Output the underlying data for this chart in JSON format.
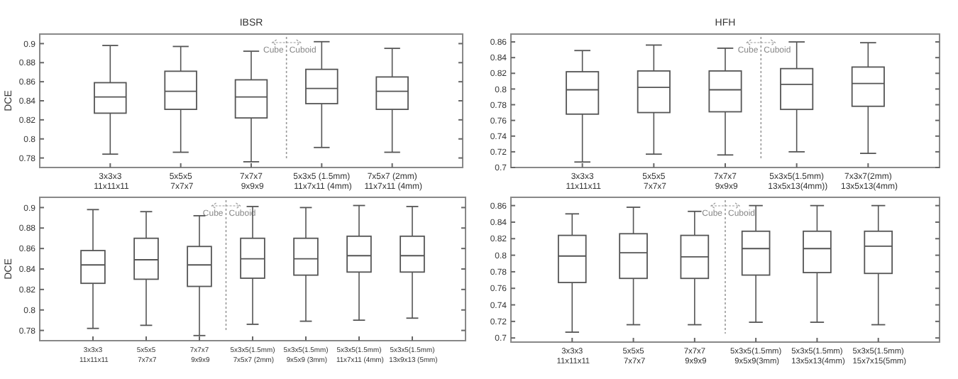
{
  "chart_data": [
    {
      "type": "box",
      "title": "IBSR",
      "ylabel": "DCE",
      "categories": [
        "3x3x3\n11x11x11",
        "5x5x5\n7x7x7",
        "7x7x7\n9x9x9",
        "5x3x5 (1.5mm)\n11x7x11 (4mm)",
        "7x5x7 (2mm)\n11x7x11 (4mm)"
      ],
      "ylim": [
        0.77,
        0.91
      ],
      "yticks": [
        0.78,
        0.8,
        0.82,
        0.84,
        0.86,
        0.88,
        0.9
      ],
      "color": "#555555",
      "annotations": [
        "Cube",
        "Cuboid"
      ],
      "boxes": [
        {
          "low": 0.784,
          "q1": 0.827,
          "median": 0.844,
          "q3": 0.859,
          "high": 0.898
        },
        {
          "low": 0.786,
          "q1": 0.831,
          "median": 0.85,
          "q3": 0.871,
          "high": 0.897
        },
        {
          "low": 0.776,
          "q1": 0.822,
          "median": 0.844,
          "q3": 0.862,
          "high": 0.892
        },
        {
          "low": 0.791,
          "q1": 0.837,
          "median": 0.853,
          "q3": 0.873,
          "high": 0.902
        },
        {
          "low": 0.786,
          "q1": 0.831,
          "median": 0.85,
          "q3": 0.865,
          "high": 0.895
        }
      ]
    },
    {
      "type": "box",
      "title": "HFH",
      "categories": [
        "3x3x3\n11x11x11",
        "5x5x5\n7x7x7",
        "7x7x7\n9x9x9",
        "5x3x5(1.5mm)\n13x5x13(4mm))",
        "7x3x7(2mm)\n13x5x13(4mm)"
      ],
      "ylim": [
        0.7,
        0.87
      ],
      "yticks": [
        0.7,
        0.72,
        0.74,
        0.76,
        0.78,
        0.8,
        0.82,
        0.84,
        0.86
      ],
      "color": "#555555",
      "annotations": [
        "Cube",
        "Cuboid"
      ],
      "boxes": [
        {
          "low": 0.707,
          "q1": 0.768,
          "median": 0.799,
          "q3": 0.822,
          "high": 0.849
        },
        {
          "low": 0.717,
          "q1": 0.77,
          "median": 0.802,
          "q3": 0.823,
          "high": 0.856
        },
        {
          "low": 0.716,
          "q1": 0.771,
          "median": 0.799,
          "q3": 0.823,
          "high": 0.852
        },
        {
          "low": 0.72,
          "q1": 0.774,
          "median": 0.806,
          "q3": 0.826,
          "high": 0.86
        },
        {
          "low": 0.718,
          "q1": 0.778,
          "median": 0.807,
          "q3": 0.828,
          "high": 0.859
        }
      ]
    },
    {
      "type": "box",
      "ylabel": "DCE",
      "categories": [
        "3x3x3\n11x11x11",
        "5x5x5\n7x7x7",
        "7x7x7\n9x9x9",
        "5x3x5(1.5mm)\n7x5x7 (2mm)",
        "5x3x5(1.5mm)\n9x5x9 (3mm)",
        "5x3x5(1.5mm)\n11x7x11 (4mm)",
        "5x3x5(1.5mm)\n13x9x13 (5mm)"
      ],
      "ylim": [
        0.77,
        0.91
      ],
      "yticks": [
        0.78,
        0.8,
        0.82,
        0.84,
        0.86,
        0.88,
        0.9
      ],
      "color": "#555555",
      "annotations": [
        "Cube",
        "Cuboid"
      ],
      "boxes": [
        {
          "low": 0.782,
          "q1": 0.826,
          "median": 0.844,
          "q3": 0.858,
          "high": 0.898
        },
        {
          "low": 0.785,
          "q1": 0.83,
          "median": 0.849,
          "q3": 0.87,
          "high": 0.896
        },
        {
          "low": 0.775,
          "q1": 0.823,
          "median": 0.844,
          "q3": 0.862,
          "high": 0.892
        },
        {
          "low": 0.786,
          "q1": 0.831,
          "median": 0.85,
          "q3": 0.87,
          "high": 0.901
        },
        {
          "low": 0.789,
          "q1": 0.834,
          "median": 0.85,
          "q3": 0.87,
          "high": 0.9
        },
        {
          "low": 0.79,
          "q1": 0.837,
          "median": 0.853,
          "q3": 0.872,
          "high": 0.902
        },
        {
          "low": 0.792,
          "q1": 0.837,
          "median": 0.853,
          "q3": 0.872,
          "high": 0.901
        }
      ]
    },
    {
      "type": "box",
      "categories": [
        "3x3x3\n11x11x11",
        "5x5x5\n7x7x7",
        "7x7x7\n9x9x9",
        "5x3x5(1.5mm)\n9x5x9(3mm)",
        "5x3x5(1.5mm)\n13x5x13(4mm)",
        "5x3x5(1.5mm)\n15x7x15(5mm)"
      ],
      "ylim": [
        0.695,
        0.87
      ],
      "yticks": [
        0.7,
        0.72,
        0.74,
        0.76,
        0.78,
        0.8,
        0.82,
        0.84,
        0.86
      ],
      "color": "#555555",
      "annotations": [
        "Cube",
        "Cuboid"
      ],
      "boxes": [
        {
          "low": 0.707,
          "q1": 0.767,
          "median": 0.799,
          "q3": 0.824,
          "high": 0.85
        },
        {
          "low": 0.716,
          "q1": 0.772,
          "median": 0.803,
          "q3": 0.826,
          "high": 0.858
        },
        {
          "low": 0.716,
          "q1": 0.772,
          "median": 0.798,
          "q3": 0.824,
          "high": 0.853
        },
        {
          "low": 0.719,
          "q1": 0.776,
          "median": 0.808,
          "q3": 0.829,
          "high": 0.86
        },
        {
          "low": 0.719,
          "q1": 0.779,
          "median": 0.808,
          "q3": 0.829,
          "high": 0.86
        },
        {
          "low": 0.716,
          "q1": 0.778,
          "median": 0.811,
          "q3": 0.829,
          "high": 0.86
        }
      ]
    }
  ]
}
